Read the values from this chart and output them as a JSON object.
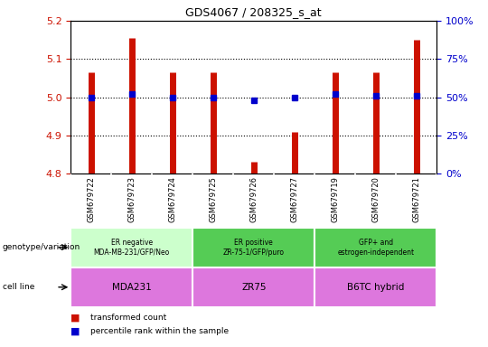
{
  "title": "GDS4067 / 208325_s_at",
  "samples": [
    "GSM679722",
    "GSM679723",
    "GSM679724",
    "GSM679725",
    "GSM679726",
    "GSM679727",
    "GSM679719",
    "GSM679720",
    "GSM679721"
  ],
  "transformed_count": [
    5.065,
    5.155,
    5.065,
    5.065,
    4.83,
    4.91,
    5.065,
    5.065,
    5.15
  ],
  "percentile_rank": [
    50,
    52,
    50,
    50,
    48,
    50,
    52,
    51,
    51
  ],
  "bar_color": "#cc1100",
  "dot_color": "#0000cc",
  "ylim": [
    4.8,
    5.2
  ],
  "yticks": [
    4.8,
    4.9,
    5.0,
    5.1,
    5.2
  ],
  "right_yticks": [
    0,
    25,
    50,
    75,
    100
  ],
  "right_ylim": [
    0,
    100
  ],
  "right_tick_color": "#0000cc",
  "left_tick_color": "#cc1100",
  "geno_colors": [
    "#ccffcc",
    "#55cc55",
    "#55cc55"
  ],
  "cell_color": "#dd77dd",
  "genotype_labels": [
    "ER negative\nMDA-MB-231/GFP/Neo",
    "ER positive\nZR-75-1/GFP/puro",
    "GFP+ and\nestrogen-independent"
  ],
  "cell_labels": [
    "MDA231",
    "ZR75",
    "B6TC hybrid"
  ],
  "group_boundaries": [
    0,
    3,
    6,
    9
  ],
  "genotype_label": "genotype/variation",
  "cell_line_label": "cell line",
  "legend_red_label": "transformed count",
  "legend_blue_label": "percentile rank within the sample"
}
